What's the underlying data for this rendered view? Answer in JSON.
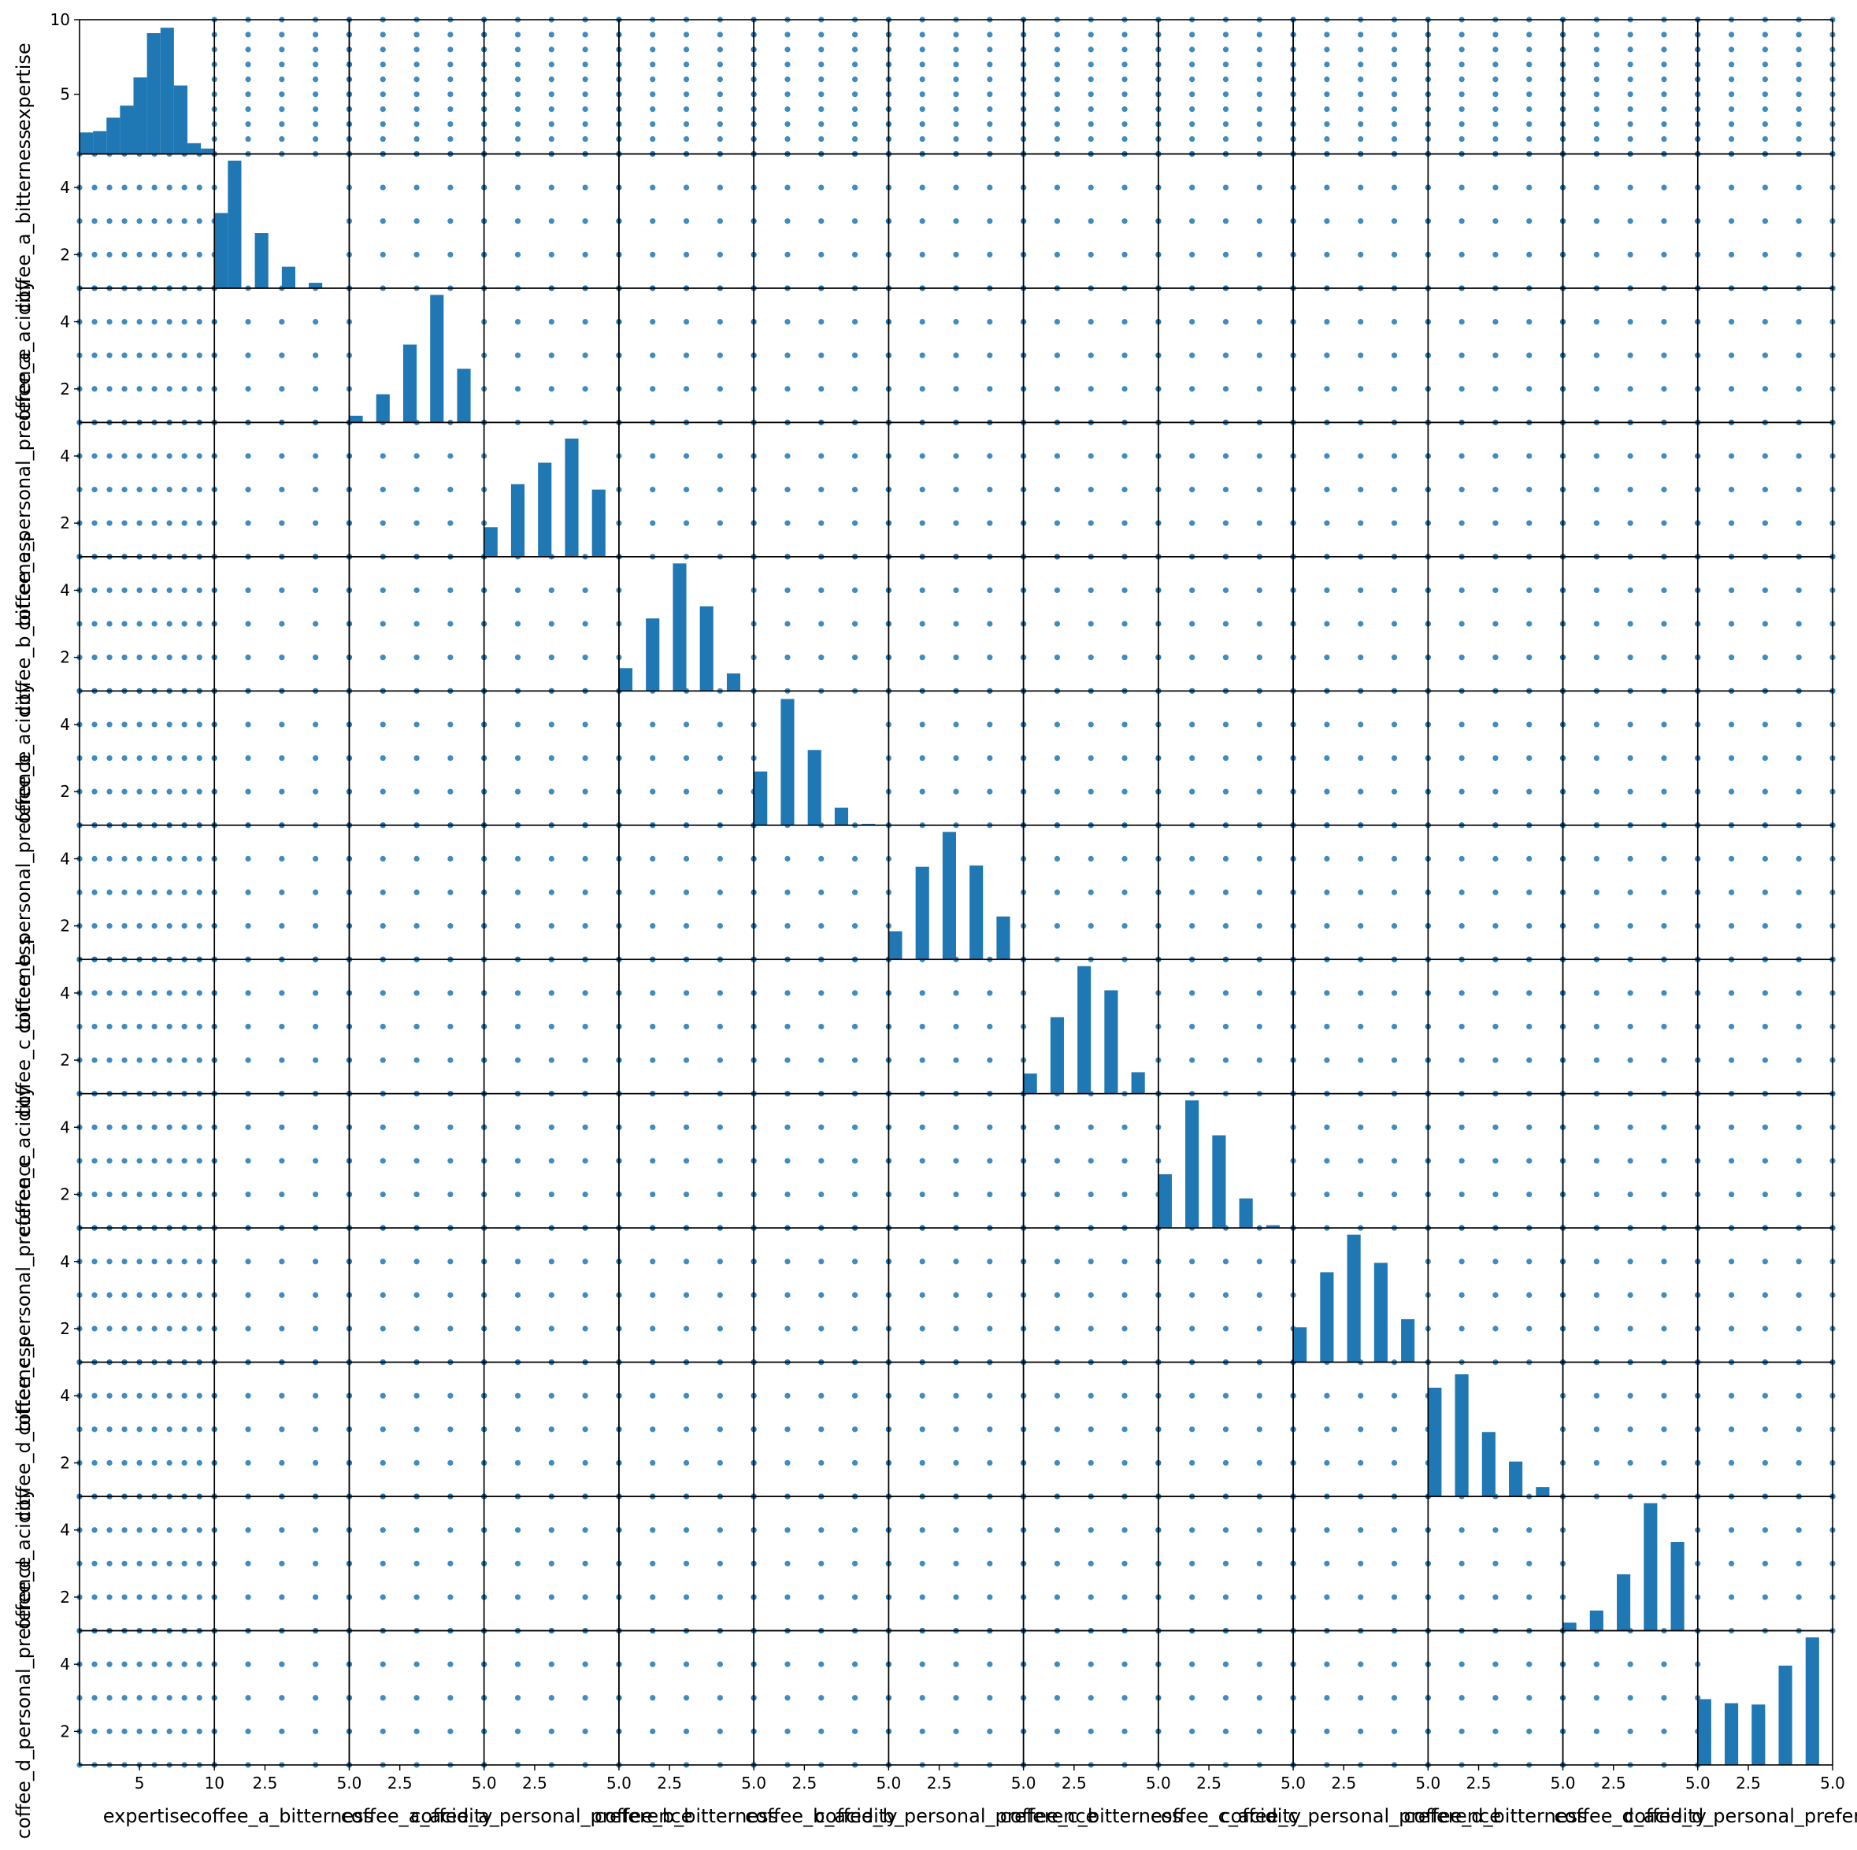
{
  "chart_data": {
    "type": "scatter_matrix",
    "title": "",
    "variables": [
      "expertise",
      "coffee_a_bitterness",
      "coffee_a_acidity",
      "coffee_a_personal_preference",
      "coffee_b_bitterness",
      "coffee_b_acidity",
      "coffee_b_personal_preference",
      "coffee_c_bitterness",
      "coffee_c_acidity",
      "coffee_c_personal_preference",
      "coffee_d_bitterness",
      "coffee_d_acidity",
      "coffee_d_personal_preference"
    ],
    "ranges": {
      "expertise": [
        1,
        10
      ],
      "rating": [
        1,
        5
      ]
    },
    "tick_labels": {
      "expertise_x": [
        "5",
        "10"
      ],
      "expertise_y": [
        "5",
        "10"
      ],
      "rating_x": [
        "2.5",
        "5.0"
      ],
      "rating_y": [
        "2",
        "4"
      ]
    },
    "scatter_levels": {
      "expertise": [
        1,
        2,
        3,
        4,
        5,
        6,
        7,
        8,
        9,
        10
      ],
      "rating": [
        1,
        2,
        3,
        4,
        5
      ]
    },
    "diagonal_histograms": [
      {
        "variable": "expertise",
        "bins": 10,
        "relative_counts": [
          0.16,
          0.17,
          0.27,
          0.36,
          0.57,
          0.9,
          0.94,
          0.51,
          0.08,
          0.04
        ]
      },
      {
        "variable": "coffee_a_bitterness",
        "bins": 10,
        "relative_counts": [
          0.56,
          0.95,
          0,
          0.41,
          0,
          0.16,
          0,
          0.04,
          0,
          0
        ]
      },
      {
        "variable": "coffee_a_acidity",
        "bins": 10,
        "relative_counts": [
          0.05,
          0,
          0.21,
          0,
          0.58,
          0,
          0.95,
          0,
          0.4,
          0
        ]
      },
      {
        "variable": "coffee_a_personal_preference",
        "bins": 10,
        "relative_counts": [
          0.22,
          0,
          0.54,
          0,
          0.7,
          0,
          0.88,
          0,
          0.5,
          0
        ]
      },
      {
        "variable": "coffee_b_bitterness",
        "bins": 10,
        "relative_counts": [
          0.17,
          0,
          0.54,
          0,
          0.95,
          0,
          0.63,
          0,
          0.13,
          0
        ]
      },
      {
        "variable": "coffee_b_acidity",
        "bins": 10,
        "relative_counts": [
          0.4,
          0,
          0.94,
          0,
          0.56,
          0,
          0.13,
          0,
          0.01,
          0
        ]
      },
      {
        "variable": "coffee_b_personal_preference",
        "bins": 10,
        "relative_counts": [
          0.21,
          0,
          0.69,
          0,
          0.95,
          0,
          0.7,
          0,
          0.32,
          0
        ]
      },
      {
        "variable": "coffee_c_bitterness",
        "bins": 10,
        "relative_counts": [
          0.15,
          0,
          0.57,
          0,
          0.95,
          0,
          0.77,
          0,
          0.16,
          0
        ]
      },
      {
        "variable": "coffee_c_acidity",
        "bins": 10,
        "relative_counts": [
          0.4,
          0,
          0.95,
          0,
          0.69,
          0,
          0.22,
          0,
          0.02,
          0
        ]
      },
      {
        "variable": "coffee_c_personal_preference",
        "bins": 10,
        "relative_counts": [
          0.26,
          0,
          0.67,
          0,
          0.95,
          0,
          0.74,
          0,
          0.32,
          0
        ]
      },
      {
        "variable": "coffee_d_bitterness",
        "bins": 10,
        "relative_counts": [
          0.81,
          0,
          0.91,
          0,
          0.48,
          0,
          0.26,
          0,
          0.07,
          0
        ]
      },
      {
        "variable": "coffee_d_acidity",
        "bins": 10,
        "relative_counts": [
          0.06,
          0,
          0.15,
          0,
          0.42,
          0,
          0.95,
          0,
          0.66,
          0
        ]
      },
      {
        "variable": "coffee_d_personal_preference",
        "bins": 10,
        "relative_counts": [
          0.49,
          0,
          0.46,
          0,
          0.45,
          0,
          0.74,
          0,
          0.95,
          0
        ]
      }
    ],
    "colors": {
      "marks": "#1f77b4",
      "frame": "#000000"
    },
    "grid": false,
    "legend": "none"
  }
}
